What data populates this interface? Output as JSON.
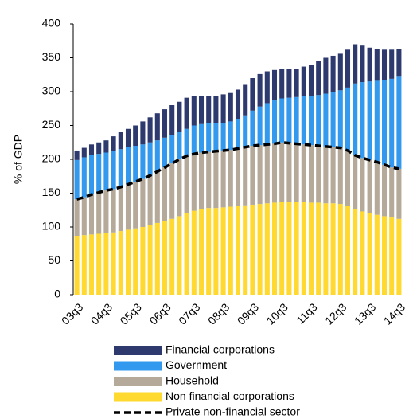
{
  "chart_data": {
    "type": "bar",
    "stacked": true,
    "y_label": "% of GDP",
    "categories": [
      "03q3",
      null,
      null,
      null,
      "04q3",
      null,
      null,
      null,
      "05q3",
      null,
      null,
      null,
      "06q3",
      null,
      null,
      null,
      "07q3",
      null,
      null,
      null,
      "08q3",
      null,
      null,
      null,
      "09q3",
      null,
      null,
      null,
      "10q3",
      null,
      null,
      null,
      "11q3",
      null,
      null,
      null,
      "12q3",
      null,
      null,
      null,
      "13q3",
      null,
      null,
      null,
      "14q3"
    ],
    "series": [
      {
        "name": "Financial corporations",
        "color": "#2e3a6e",
        "values": [
          14,
          14,
          16,
          17,
          18,
          22,
          25,
          27,
          30,
          34,
          37,
          40,
          42,
          44,
          45,
          46,
          44,
          42,
          40,
          41,
          42,
          42,
          43,
          45,
          48,
          48,
          47,
          45,
          43,
          42,
          42,
          44,
          46,
          50,
          53,
          54,
          54,
          56,
          58,
          54,
          50,
          47,
          45,
          43,
          41
        ]
      },
      {
        "name": "Government",
        "color": "#3399ee",
        "values": [
          58,
          59,
          58,
          57,
          56,
          56,
          56,
          55,
          53,
          51,
          49,
          46,
          44,
          42,
          40,
          40,
          42,
          42,
          42,
          41,
          41,
          42,
          44,
          47,
          52,
          57,
          61,
          64,
          65,
          67,
          69,
          71,
          73,
          75,
          78,
          81,
          85,
          93,
          106,
          112,
          116,
          120,
          125,
          131,
          136
        ]
      },
      {
        "name": "Household",
        "color": "#b5a99a",
        "values": [
          54,
          56,
          59,
          61,
          63,
          64,
          65,
          67,
          69,
          71,
          73,
          76,
          79,
          82,
          84,
          85,
          84,
          84,
          83,
          84,
          84,
          84,
          85,
          86,
          87,
          87,
          87,
          87,
          88,
          87,
          86,
          85,
          85,
          84,
          84,
          83,
          83,
          82,
          80,
          79,
          79,
          78,
          76,
          74,
          74
        ]
      },
      {
        "name": "Non financial corporations",
        "color": "#ffd92f",
        "values": [
          87,
          88,
          89,
          90,
          91,
          92,
          94,
          96,
          98,
          100,
          103,
          106,
          109,
          112,
          116,
          120,
          124,
          126,
          128,
          128,
          129,
          130,
          131,
          132,
          133,
          134,
          135,
          136,
          137,
          137,
          137,
          137,
          136,
          136,
          135,
          135,
          134,
          131,
          126,
          123,
          120,
          118,
          116,
          114,
          112
        ]
      },
      {
        "name": "Private non-financial sector",
        "type": "line",
        "color": "#000000",
        "dashed": true,
        "values": [
          141,
          144,
          148,
          151,
          154,
          156,
          159,
          163,
          167,
          171,
          176,
          182,
          188,
          194,
          200,
          205,
          208,
          210,
          211,
          212,
          213,
          214,
          216,
          218,
          220,
          221,
          222,
          223,
          225,
          224,
          223,
          222,
          221,
          220,
          219,
          218,
          217,
          213,
          206,
          202,
          199,
          196,
          192,
          188,
          186
        ]
      }
    ],
    "ylim": [
      0,
      400
    ],
    "yticks": [
      0,
      50,
      100,
      150,
      200,
      250,
      300,
      350,
      400
    ],
    "grid": false
  }
}
